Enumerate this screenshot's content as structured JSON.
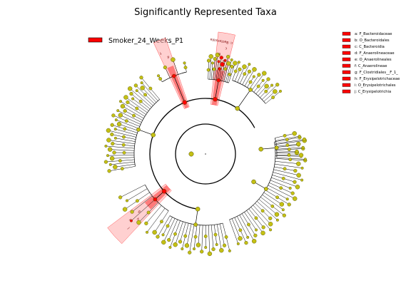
{
  "title": "Significantly Represented Taxa",
  "colors": {
    "node_default": "#c4c014",
    "node_stroke": "#4a4a00",
    "node_highlight": "#ff0000",
    "highlight_fill": "#ff3333",
    "highlight_fill_light": "#ffaaaa",
    "branch": "#000000"
  },
  "main_legend": {
    "label": "Smoker_24_Weeks_P1",
    "color": "#ff0000"
  },
  "clade_legend": [
    {
      "label": "a: F_Bacteroidaceae",
      "color": "#ff0000"
    },
    {
      "label": "b: O_Bacteroidales",
      "color": "#ff0000"
    },
    {
      "label": "c: C_Bacteroidia",
      "color": "#ff0000"
    },
    {
      "label": "d: F_Anaerolineaceae",
      "color": "#ff0000"
    },
    {
      "label": "e: O_Anaerolineales",
      "color": "#ff0000"
    },
    {
      "label": "f: C_Anaerolineae",
      "color": "#ff0000"
    },
    {
      "label": "g: F_Clostridiales__F_1_",
      "color": "#ff0000"
    },
    {
      "label": "h: F_Erysipelotrichaceae",
      "color": "#ff0000"
    },
    {
      "label": "i: O_Erysipelotrichales",
      "color": "#ff0000"
    },
    {
      "label": "j: C_Erysipelotrichia",
      "color": "#ff0000"
    }
  ],
  "tree": {
    "groups": [
      {
        "name": "top-left-small",
        "center_deg": 248,
        "span": 18,
        "leaves": 4,
        "r_split": 118,
        "highlighted": true,
        "hl_span": 6
      },
      {
        "name": "left",
        "center_deg": 200,
        "span": 60,
        "leaves": 34,
        "r_split": 100,
        "highlighted": false
      },
      {
        "name": "lower-left",
        "center_deg": 138,
        "span": 30,
        "leaves": 9,
        "r_split": 95,
        "highlighted": true,
        "hl_span": 10
      },
      {
        "name": "bottom",
        "center_deg": 98,
        "span": 44,
        "leaves": 20,
        "r_split": 100,
        "highlighted": false
      },
      {
        "name": "right",
        "center_deg": 30,
        "span": 80,
        "leaves": 36,
        "r_split": 98,
        "highlighted": false
      },
      {
        "name": "right-edge",
        "center_deg": 355,
        "span": 16,
        "leaves": 8,
        "r_split": 100,
        "highlighted": false
      },
      {
        "name": "top-right",
        "center_deg": 305,
        "span": 30,
        "leaves": 16,
        "r_split": 110,
        "highlighted": false
      },
      {
        "name": "top",
        "center_deg": 280,
        "span": 16,
        "leaves": 14,
        "r_split": 105,
        "highlighted": true,
        "hl_span": 8
      }
    ]
  },
  "clade_labels": [
    {
      "text": "a",
      "group": "top"
    },
    {
      "text": "b",
      "group": "top"
    },
    {
      "text": "c",
      "group": "top"
    },
    {
      "text": "d",
      "group": "top-left-small"
    },
    {
      "text": "f",
      "group": "top-left-small"
    },
    {
      "text": "g",
      "group": "lower-left"
    },
    {
      "text": "h",
      "group": "lower-left"
    },
    {
      "text": "i",
      "group": "lower-left"
    },
    {
      "text": "j",
      "group": "lower-left"
    },
    {
      "text": "c: Bacteroidia",
      "group": "top"
    }
  ]
}
